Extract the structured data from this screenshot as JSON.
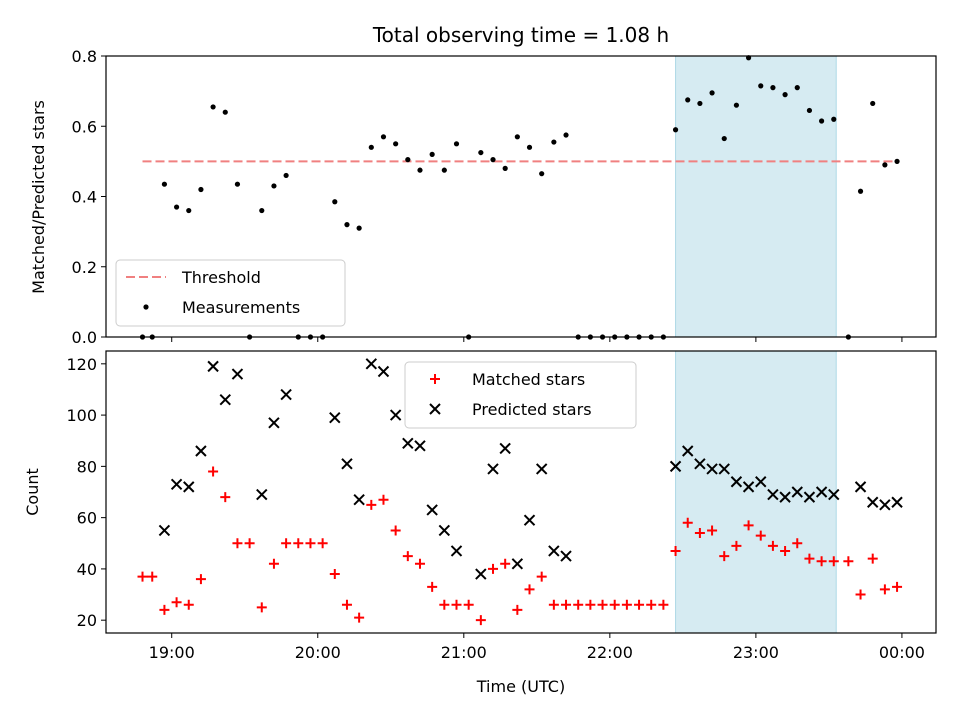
{
  "chart_data": [
    {
      "type": "scatter",
      "title": "Total observing time = 1.08 h",
      "xlabel": "",
      "ylabel": "Matched/Predicted stars",
      "xlim": [
        "18:33",
        "00:14"
      ],
      "ylim": [
        0,
        0.8
      ],
      "yticks": [
        "0.0",
        "0.2",
        "0.4",
        "0.6",
        "0.8"
      ],
      "grid": false,
      "legend_position": "lower-left",
      "highlight_span": {
        "start": "22:27",
        "end": "23:33",
        "color": "#add8e6"
      },
      "threshold": {
        "name": "Threshold",
        "value": 0.5,
        "x_start": "18:48",
        "x_end": "23:58",
        "color": "#f08080"
      },
      "series": [
        {
          "name": "Measurements",
          "color": "#000000",
          "x": [
            "18:48",
            "18:52",
            "18:57",
            "19:02",
            "19:07",
            "19:12",
            "19:17",
            "19:22",
            "19:27",
            "19:32",
            "19:37",
            "19:42",
            "19:47",
            "19:52",
            "19:57",
            "20:02",
            "20:07",
            "20:12",
            "20:17",
            "20:22",
            "20:27",
            "20:32",
            "20:37",
            "20:42",
            "20:47",
            "20:52",
            "20:57",
            "21:02",
            "21:07",
            "21:12",
            "21:17",
            "21:22",
            "21:27",
            "21:32",
            "21:37",
            "21:42",
            "21:47",
            "21:52",
            "21:57",
            "22:02",
            "22:07",
            "22:12",
            "22:17",
            "22:22",
            "22:27",
            "22:32",
            "22:37",
            "22:42",
            "22:47",
            "22:52",
            "22:57",
            "23:02",
            "23:07",
            "23:12",
            "23:17",
            "23:22",
            "23:27",
            "23:32",
            "23:38",
            "23:43",
            "23:48",
            "23:53",
            "23:58"
          ],
          "y": [
            0.0,
            0.0,
            0.435,
            0.37,
            0.36,
            0.42,
            0.655,
            0.64,
            0.435,
            0.0,
            0.36,
            0.43,
            0.46,
            0.0,
            0.0,
            0.0,
            0.385,
            0.32,
            0.31,
            0.54,
            0.57,
            0.55,
            0.505,
            0.475,
            0.52,
            0.475,
            0.55,
            0.0,
            0.525,
            0.505,
            0.48,
            0.57,
            0.54,
            0.465,
            0.555,
            0.575,
            0.0,
            0.0,
            0.0,
            0.0,
            0.0,
            0.0,
            0.0,
            0.0,
            0.59,
            0.675,
            0.665,
            0.695,
            0.565,
            0.66,
            0.795,
            0.715,
            0.71,
            0.69,
            0.71,
            0.645,
            0.615,
            0.62,
            0.0,
            0.415,
            0.665,
            0.49,
            0.5
          ]
        }
      ]
    },
    {
      "type": "scatter",
      "title": "",
      "xlabel": "Time (UTC)",
      "ylabel": "Count",
      "xlim": [
        "18:33",
        "00:14"
      ],
      "ylim": [
        15,
        125
      ],
      "yticks": [
        "20",
        "40",
        "60",
        "80",
        "100",
        "120"
      ],
      "xticks": [
        "19:00",
        "20:00",
        "21:00",
        "22:00",
        "23:00",
        "00:00"
      ],
      "grid": false,
      "legend_position": "top-center",
      "highlight_span": {
        "start": "22:27",
        "end": "23:33",
        "color": "#add8e6"
      },
      "series": [
        {
          "name": "Matched stars",
          "marker": "plus",
          "color": "#ff0000",
          "x": [
            "18:48",
            "18:52",
            "18:57",
            "19:02",
            "19:07",
            "19:12",
            "19:17",
            "19:22",
            "19:27",
            "19:32",
            "19:37",
            "19:42",
            "19:47",
            "19:52",
            "19:57",
            "20:02",
            "20:07",
            "20:12",
            "20:17",
            "20:22",
            "20:27",
            "20:32",
            "20:37",
            "20:42",
            "20:47",
            "20:52",
            "20:57",
            "21:02",
            "21:07",
            "21:12",
            "21:17",
            "21:22",
            "21:27",
            "21:32",
            "21:37",
            "21:42",
            "21:47",
            "21:52",
            "21:57",
            "22:02",
            "22:07",
            "22:12",
            "22:17",
            "22:22",
            "22:27",
            "22:32",
            "22:37",
            "22:42",
            "22:47",
            "22:52",
            "22:57",
            "23:02",
            "23:07",
            "23:12",
            "23:17",
            "23:22",
            "23:27",
            "23:32",
            "23:38",
            "23:43",
            "23:48",
            "23:53",
            "23:58"
          ],
          "y": [
            37,
            37,
            24,
            27,
            26,
            36,
            78,
            68,
            50,
            50,
            25,
            42,
            50,
            50,
            50,
            50,
            38,
            26,
            21,
            65,
            67,
            55,
            45,
            42,
            33,
            26,
            26,
            26,
            20,
            40,
            42,
            24,
            32,
            37,
            26,
            26,
            26,
            26,
            26,
            26,
            26,
            26,
            26,
            26,
            47,
            58,
            54,
            55,
            45,
            49,
            57,
            53,
            49,
            47,
            50,
            44,
            43,
            43,
            43,
            30,
            44,
            32,
            33
          ]
        },
        {
          "name": "Predicted stars",
          "marker": "x",
          "color": "#000000",
          "x": [
            "18:57",
            "19:02",
            "19:07",
            "19:12",
            "19:17",
            "19:22",
            "19:27",
            "19:37",
            "19:42",
            "19:47",
            "20:07",
            "20:12",
            "20:17",
            "20:22",
            "20:27",
            "20:32",
            "20:37",
            "20:42",
            "20:47",
            "20:52",
            "20:57",
            "21:07",
            "21:12",
            "21:17",
            "21:22",
            "21:27",
            "21:32",
            "21:37",
            "21:42",
            "22:27",
            "22:32",
            "22:37",
            "22:42",
            "22:47",
            "22:52",
            "22:57",
            "23:02",
            "23:07",
            "23:12",
            "23:17",
            "23:22",
            "23:27",
            "23:32",
            "23:43",
            "23:48",
            "23:53",
            "23:58"
          ],
          "y": [
            55,
            73,
            72,
            86,
            119,
            106,
            116,
            69,
            97,
            108,
            99,
            81,
            67,
            120,
            117,
            100,
            89,
            88,
            63,
            55,
            47,
            38,
            79,
            87,
            42,
            59,
            79,
            47,
            45,
            80,
            86,
            81,
            79,
            79,
            74,
            72,
            74,
            69,
            68,
            70,
            68,
            70,
            69,
            72,
            66,
            65,
            66
          ]
        }
      ]
    }
  ]
}
